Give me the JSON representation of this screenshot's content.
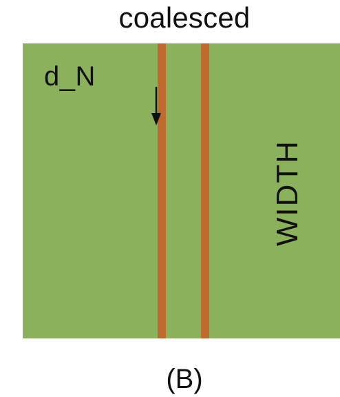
{
  "title": "coalesced",
  "labels": {
    "d_n": "d_N",
    "width": "WIDTH"
  },
  "caption": "(B)",
  "icons": {
    "arrow": "down-arrow-icon"
  },
  "colors": {
    "field": "#8cb15d",
    "stripe": "#bf6b2f",
    "text": "#111111",
    "background": "#ffffff"
  }
}
